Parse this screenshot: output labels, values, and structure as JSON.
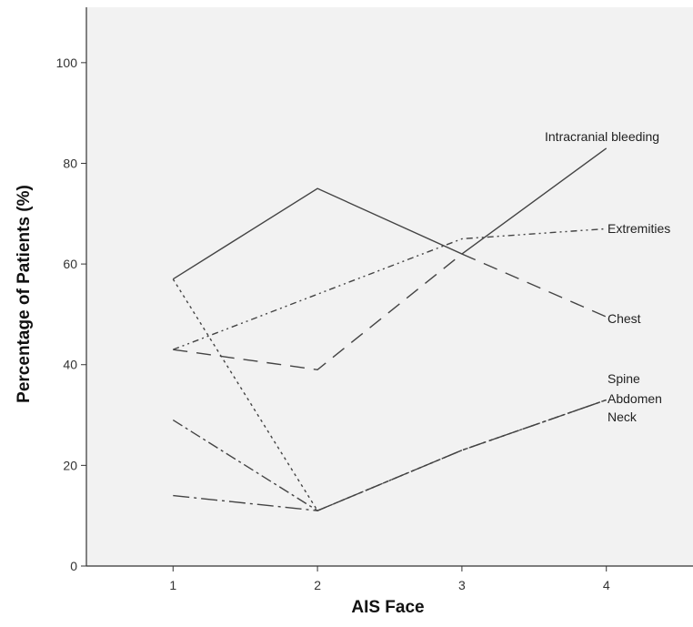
{
  "chart_data": {
    "type": "line",
    "title": "",
    "xlabel": "AIS Face",
    "ylabel": "Percentage of Patients (%)",
    "x": [
      1,
      2,
      3,
      4
    ],
    "x_tick_labels": [
      "1",
      "2",
      "3",
      "4"
    ],
    "y_tick_labels": [
      "0",
      "20",
      "40",
      "60",
      "80",
      "100"
    ],
    "xlim": [
      0.4,
      4.6
    ],
    "ylim": [
      0,
      111
    ],
    "grid": false,
    "series": [
      {
        "name": "Intracranial bleeding",
        "values": [
          57,
          75,
          62,
          83
        ],
        "dash": "solid"
      },
      {
        "name": "Extremities",
        "values": [
          43,
          54,
          65,
          67
        ],
        "dash": "dash-dot-dot"
      },
      {
        "name": "Chest",
        "values": [
          43,
          39,
          62,
          49.5
        ],
        "dash": "long-dash"
      },
      {
        "name": "Spine",
        "values": [
          57,
          11,
          23,
          33
        ],
        "dash": "dotted"
      },
      {
        "name": "Abdomen",
        "values": [
          29,
          11,
          23,
          33
        ],
        "dash": "dash-dot"
      },
      {
        "name": "Neck",
        "values": [
          14,
          11,
          23,
          33
        ],
        "dash": "long-dash-dot"
      }
    ],
    "colors": {
      "plot_background": "#f2f2f2",
      "line": "#444444",
      "axis": "#333333"
    }
  }
}
